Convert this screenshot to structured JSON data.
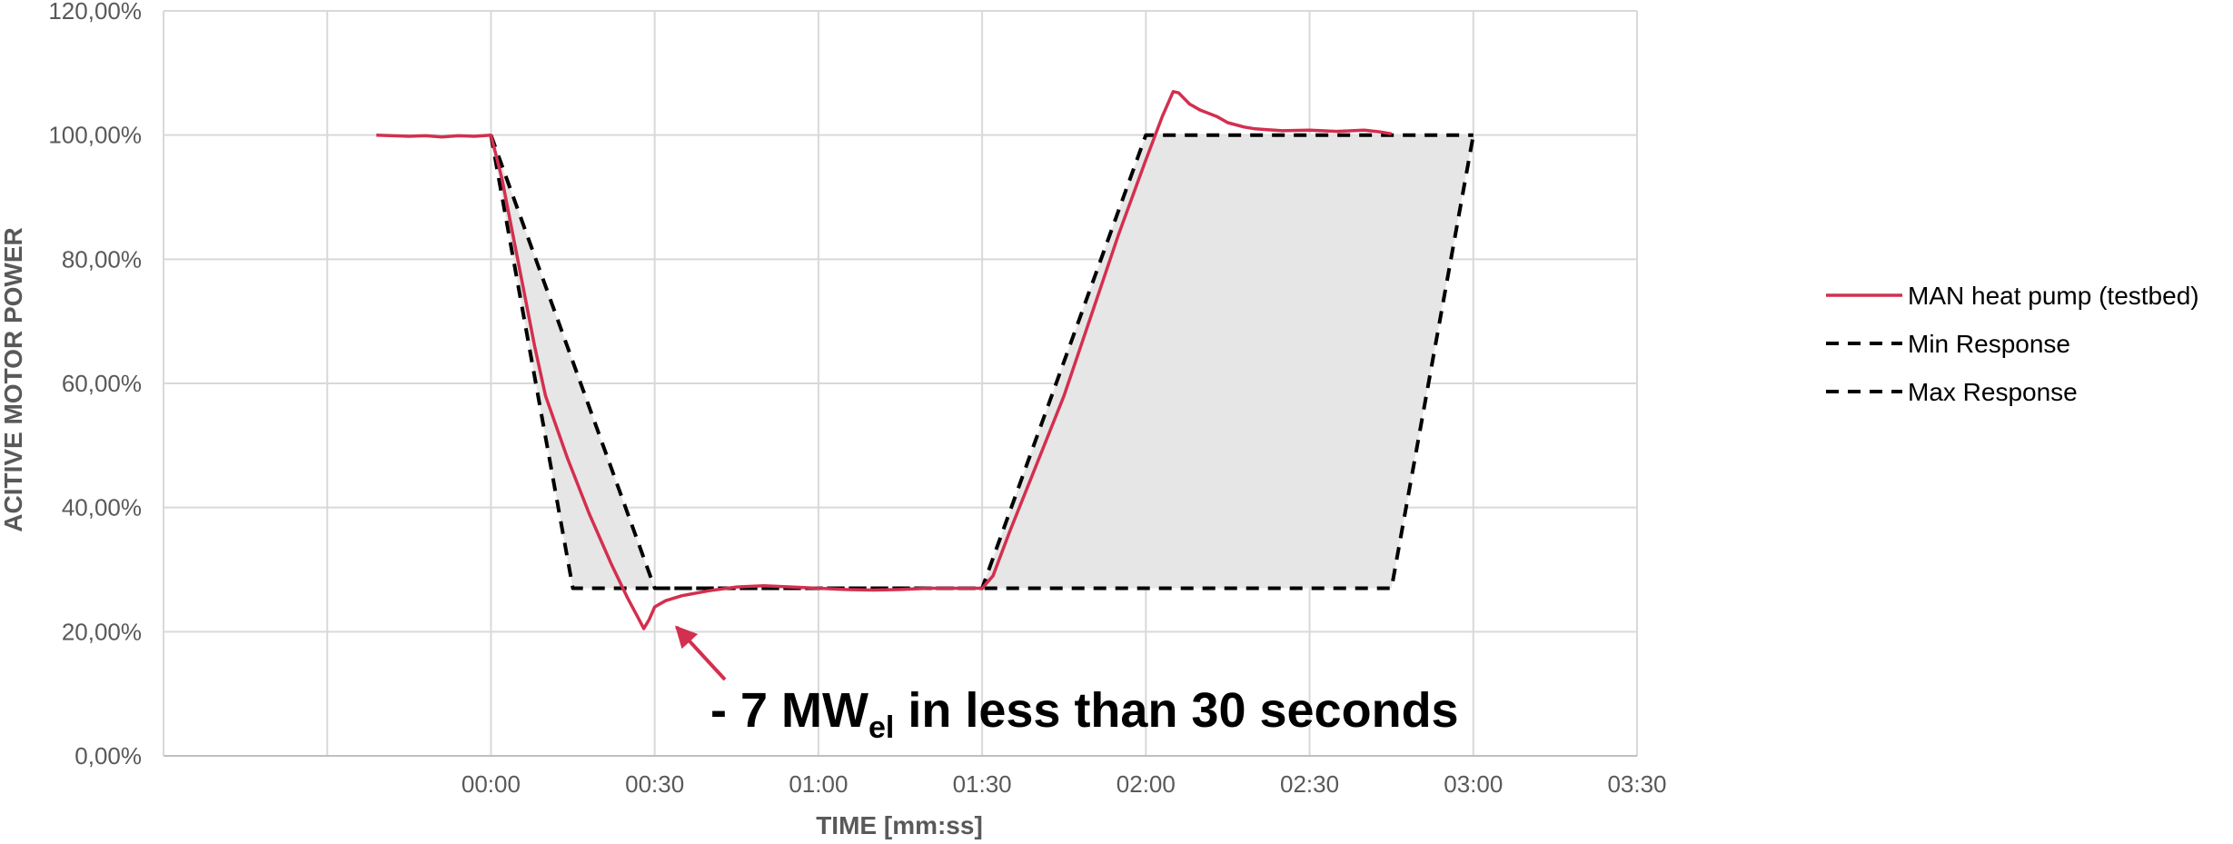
{
  "chart_data": {
    "type": "line",
    "xlabel": "TIME [mm:ss]",
    "ylabel": "ACITIVE MOTOR POWER",
    "x_unit": "mm:ss",
    "xlim": [
      "-01:00",
      "03:30"
    ],
    "ylim": [
      0,
      1.2
    ],
    "x_ticks": [
      "00:00",
      "00:30",
      "01:00",
      "01:30",
      "02:00",
      "02:30",
      "03:00",
      "03:30"
    ],
    "y_ticks": [
      "0,00%",
      "20,00%",
      "40,00%",
      "60,00%",
      "80,00%",
      "100,00%",
      "120,00%"
    ],
    "grid": true,
    "legend_position": "right",
    "series": [
      {
        "name": "MAN heat pump (testbed)",
        "color": "#d32f4f",
        "style": "solid",
        "points": [
          [
            "-00:21",
            1.0
          ],
          [
            "-00:18",
            0.999
          ],
          [
            "-00:15",
            0.998
          ],
          [
            "-00:12",
            0.999
          ],
          [
            "-00:09",
            0.997
          ],
          [
            "-00:06",
            0.999
          ],
          [
            "-00:03",
            0.998
          ],
          [
            "00:00",
            1.0
          ],
          [
            "00:02",
            0.93
          ],
          [
            "00:04",
            0.84
          ],
          [
            "00:06",
            0.75
          ],
          [
            "00:08",
            0.66
          ],
          [
            "00:10",
            0.58
          ],
          [
            "00:14",
            0.48
          ],
          [
            "00:18",
            0.39
          ],
          [
            "00:22",
            0.31
          ],
          [
            "00:25",
            0.255
          ],
          [
            "00:27",
            0.222
          ],
          [
            "00:28",
            0.205
          ],
          [
            "00:29",
            0.22
          ],
          [
            "00:30",
            0.24
          ],
          [
            "00:32",
            0.25
          ],
          [
            "00:35",
            0.258
          ],
          [
            "00:40",
            0.266
          ],
          [
            "00:45",
            0.272
          ],
          [
            "00:50",
            0.274
          ],
          [
            "00:55",
            0.272
          ],
          [
            "01:00",
            0.27
          ],
          [
            "01:05",
            0.268
          ],
          [
            "01:10",
            0.267
          ],
          [
            "01:15",
            0.268
          ],
          [
            "01:20",
            0.27
          ],
          [
            "01:25",
            0.27
          ],
          [
            "01:30",
            0.27
          ],
          [
            "01:32",
            0.29
          ],
          [
            "01:35",
            0.36
          ],
          [
            "01:40",
            0.47
          ],
          [
            "01:45",
            0.58
          ],
          [
            "01:50",
            0.71
          ],
          [
            "01:55",
            0.84
          ],
          [
            "02:00",
            0.96
          ],
          [
            "02:03",
            1.03
          ],
          [
            "02:05",
            1.07
          ],
          [
            "02:06",
            1.068
          ],
          [
            "02:08",
            1.05
          ],
          [
            "02:10",
            1.04
          ],
          [
            "02:13",
            1.03
          ],
          [
            "02:15",
            1.02
          ],
          [
            "02:18",
            1.013
          ],
          [
            "02:20",
            1.01
          ],
          [
            "02:25",
            1.007
          ],
          [
            "02:30",
            1.008
          ],
          [
            "02:35",
            1.006
          ],
          [
            "02:40",
            1.008
          ],
          [
            "02:43",
            1.005
          ],
          [
            "02:45",
            1.002
          ]
        ]
      },
      {
        "name": "Min Response",
        "color": "#000000",
        "style": "dashed",
        "points": [
          [
            "00:00",
            1.0
          ],
          [
            "00:30",
            0.27
          ],
          [
            "01:30",
            0.27
          ],
          [
            "02:00",
            1.0
          ],
          [
            "03:00",
            1.0
          ]
        ]
      },
      {
        "name": "Max Response",
        "color": "#000000",
        "style": "dashed",
        "points": [
          [
            "00:00",
            1.0
          ],
          [
            "00:15",
            0.27
          ],
          [
            "02:45",
            0.27
          ],
          [
            "03:00",
            1.0
          ]
        ]
      }
    ],
    "annotations": [
      {
        "text_main": "- 7 MW",
        "text_sub": "el",
        "text_tail": " in less than 30 seconds",
        "arrow_target": [
          "00:33",
          0.225
        ],
        "arrow_color": "#d32f4f"
      }
    ]
  }
}
